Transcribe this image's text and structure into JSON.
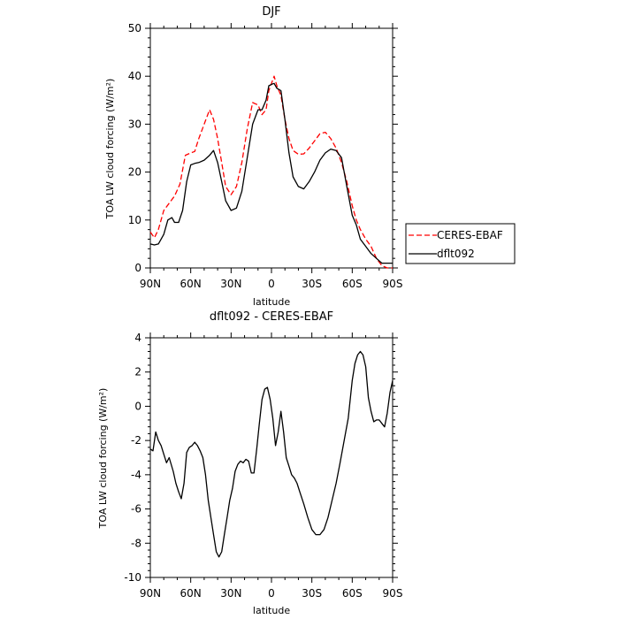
{
  "chart_data": [
    {
      "type": "line",
      "title": "DJF",
      "xlabel": "latitude",
      "ylabel": "TOA LW cloud forcing (W/m²)",
      "ylim": [
        0,
        50
      ],
      "xlim": [
        90,
        -90
      ],
      "xtick_labels": [
        "90N",
        "60N",
        "30N",
        "0",
        "30S",
        "60S",
        "90S"
      ],
      "xtick_values": [
        90,
        60,
        30,
        0,
        -30,
        -60,
        -90
      ],
      "ytick_values": [
        0,
        10,
        20,
        30,
        40,
        50
      ],
      "grid": false,
      "legend_position": "outside-right",
      "series": [
        {
          "name": "CERES-EBAF",
          "color": "#ff0000",
          "dash": "dashed",
          "x": [
            90,
            87,
            84,
            80,
            76,
            72,
            68,
            64,
            60,
            57,
            54,
            50,
            46,
            43,
            40,
            37,
            34,
            30,
            26,
            22,
            18,
            14,
            10,
            7,
            4,
            2,
            0,
            -2,
            -4,
            -7,
            -10,
            -13,
            -16,
            -20,
            -24,
            -28,
            -32,
            -36,
            -40,
            -44,
            -48,
            -52,
            -56,
            -60,
            -63,
            -66,
            -70,
            -74,
            -78,
            -82,
            -86,
            -90
          ],
          "y": [
            7.5,
            6.3,
            8,
            12,
            13.5,
            15,
            17.5,
            23.5,
            24,
            24.3,
            27,
            30,
            33,
            31,
            27,
            22,
            17,
            15.3,
            17,
            22,
            29,
            34.5,
            34,
            32,
            33,
            37,
            38.5,
            40,
            38,
            36,
            31,
            27,
            24.5,
            23.7,
            23.8,
            25,
            26.5,
            28,
            28.3,
            27,
            25,
            22,
            18,
            13,
            10,
            8,
            6,
            4.5,
            2,
            0.5,
            0,
            0
          ]
        },
        {
          "name": "dflt092",
          "color": "#000000",
          "dash": "solid",
          "x": [
            90,
            87,
            84,
            80,
            77,
            74,
            72,
            69,
            66,
            63,
            60,
            57,
            54,
            50,
            46,
            43,
            40,
            37,
            34,
            30,
            26,
            22,
            18,
            14,
            10,
            7,
            4,
            2,
            0,
            -2,
            -4,
            -7,
            -10,
            -13,
            -16,
            -20,
            -24,
            -28,
            -32,
            -36,
            -40,
            -44,
            -48,
            -52,
            -56,
            -60,
            -63,
            -66,
            -70,
            -74,
            -78,
            -82,
            -86,
            -90
          ],
          "y": [
            5,
            4.8,
            5,
            7,
            10,
            10.5,
            9.5,
            9.5,
            12,
            18,
            21.5,
            21.8,
            22,
            22.5,
            23.5,
            24.5,
            22,
            18,
            14,
            12,
            12.5,
            16,
            23,
            30,
            33,
            33,
            35,
            38,
            38.3,
            38.5,
            37.5,
            37,
            31,
            24,
            19,
            17,
            16.5,
            18,
            20,
            22.5,
            24,
            24.8,
            24.5,
            23,
            17,
            11,
            9,
            6,
            4.5,
            3,
            2,
            1,
            1,
            1
          ]
        }
      ]
    },
    {
      "type": "line",
      "title": "dflt092 - CERES-EBAF",
      "xlabel": "latitude",
      "ylabel": "TOA LW cloud forcing (W/m²)",
      "ylim": [
        -10,
        4
      ],
      "xlim": [
        90,
        -90
      ],
      "xtick_labels": [
        "90N",
        "60N",
        "30N",
        "0",
        "30S",
        "60S",
        "90S"
      ],
      "xtick_values": [
        90,
        60,
        30,
        0,
        -30,
        -60,
        -90
      ],
      "ytick_values": [
        -10,
        -8,
        -6,
        -4,
        -2,
        0,
        2,
        4
      ],
      "grid": false,
      "series": [
        {
          "color": "#000000",
          "dash": "solid",
          "x": [
            90,
            88,
            86,
            84,
            82,
            80,
            78,
            76,
            73,
            71,
            69,
            67,
            65,
            63,
            61,
            59,
            57,
            55,
            53,
            51,
            49,
            47,
            45,
            43,
            41,
            39,
            37,
            35,
            33,
            31,
            29,
            27,
            25,
            23,
            21,
            19,
            17,
            15,
            13,
            11,
            9,
            7,
            5,
            3,
            1,
            -1,
            -3,
            -5,
            -7,
            -9,
            -11,
            -13,
            -15,
            -17,
            -19,
            -21,
            -24,
            -27,
            -30,
            -33,
            -36,
            -39,
            -42,
            -45,
            -48,
            -51,
            -54,
            -57,
            -60,
            -62,
            -64,
            -66,
            -68,
            -70,
            -72,
            -74,
            -76,
            -78,
            -80,
            -82,
            -84,
            -86,
            -88,
            -90
          ],
          "y": [
            -2.5,
            -2.6,
            -1.5,
            -2,
            -2.3,
            -2.8,
            -3.3,
            -3,
            -3.8,
            -4.5,
            -5,
            -5.4,
            -4.5,
            -2.7,
            -2.4,
            -2.3,
            -2.1,
            -2.3,
            -2.6,
            -3,
            -4,
            -5.5,
            -6.5,
            -7.5,
            -8.5,
            -8.8,
            -8.5,
            -7.5,
            -6.5,
            -5.5,
            -4.8,
            -3.8,
            -3.4,
            -3.2,
            -3.3,
            -3.1,
            -3.2,
            -3.9,
            -3.9,
            -2.5,
            -1,
            0.4,
            1,
            1.1,
            0.4,
            -0.7,
            -2.3,
            -1.5,
            -0.3,
            -1.5,
            -3,
            -3.5,
            -4,
            -4.2,
            -4.5,
            -5,
            -5.7,
            -6.5,
            -7.2,
            -7.5,
            -7.5,
            -7.2,
            -6.5,
            -5.5,
            -4.5,
            -3.3,
            -2,
            -0.7,
            1.5,
            2.5,
            3,
            3.2,
            3,
            2.3,
            0.5,
            -0.3,
            -0.9,
            -0.8,
            -0.8,
            -1,
            -1.2,
            -0.4,
            0.8,
            1.5
          ]
        }
      ]
    }
  ],
  "legend": {
    "items": [
      {
        "label": "CERES-EBAF"
      },
      {
        "label": "dflt092"
      }
    ]
  }
}
